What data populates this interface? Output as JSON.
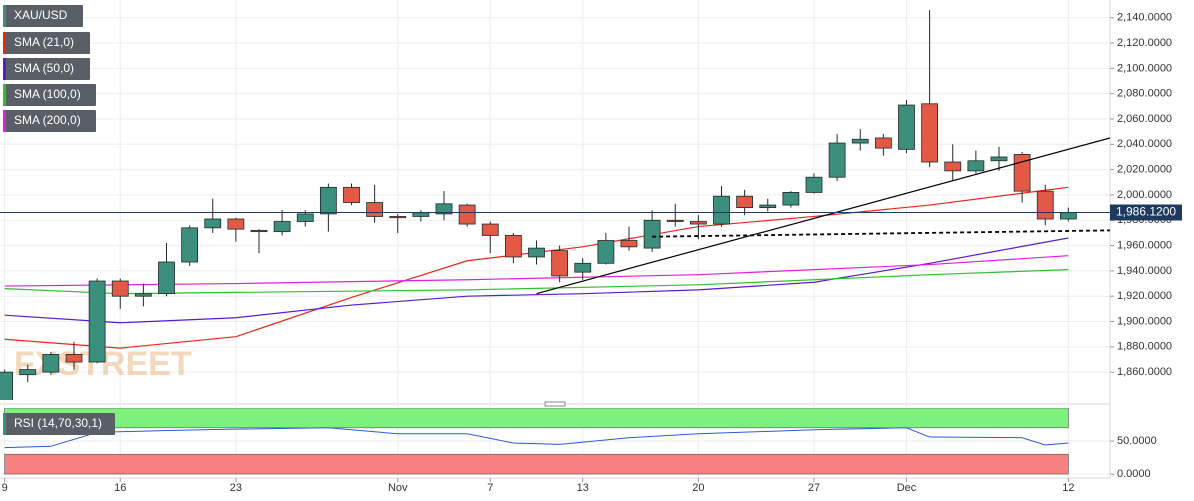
{
  "chart_data": [
    {
      "type": "candlestick",
      "name": "XAU/USD",
      "color_up": "#3b8f7c",
      "color_down": "#e25a45",
      "x": [
        0,
        1,
        2,
        3,
        4,
        5,
        6,
        7,
        8,
        9,
        10,
        11,
        12,
        13,
        14,
        15,
        16,
        17,
        18,
        19,
        20,
        21,
        22,
        23,
        24,
        25,
        26,
        27,
        28,
        29,
        30,
        31,
        32,
        33,
        34,
        35,
        36,
        37,
        38,
        39,
        40,
        41,
        42,
        43,
        44,
        45,
        46
      ],
      "open": [
        1832,
        1858,
        1860,
        1874,
        1868,
        1932,
        1920,
        1922,
        1947,
        1974,
        1981,
        1972,
        1971,
        1979,
        1985,
        2006,
        1994,
        1983,
        1983,
        1985,
        1992,
        1977,
        1968,
        1951,
        1956,
        1939,
        1946,
        1964,
        1958,
        1980,
        1979,
        1977,
        1999,
        1990,
        1992,
        2002,
        2014,
        2041,
        2045,
        2036,
        2072,
        2026,
        2019,
        2027,
        2032,
        2003,
        1981
      ],
      "high": [
        1862,
        1866,
        1876,
        1884,
        1934,
        1934,
        1930,
        1962,
        1976,
        1997,
        1982,
        1973,
        1988,
        1988,
        2009,
        2009,
        2008,
        1985,
        1988,
        2003,
        1993,
        1979,
        1970,
        1964,
        1960,
        1950,
        1970,
        1975,
        1988,
        1993,
        1984,
        2007,
        2004,
        1997,
        2003,
        2017,
        2048,
        2052,
        2048,
        2075,
        2146,
        2040,
        2035,
        2038,
        2034,
        2008,
        1990
      ],
      "low": [
        1830,
        1852,
        1858,
        1862,
        1867,
        1910,
        1912,
        1920,
        1944,
        1970,
        1963,
        1954,
        1968,
        1975,
        1971,
        1992,
        1978,
        1970,
        1979,
        1980,
        1975,
        1954,
        1946,
        1945,
        1931,
        1933,
        1945,
        1956,
        1955,
        1975,
        1965,
        1975,
        1984,
        1987,
        1990,
        2001,
        2011,
        2035,
        2031,
        2033,
        2022,
        2011,
        2017,
        2019,
        1994,
        1976,
        1979
      ],
      "close": [
        1860,
        1862,
        1874,
        1868,
        1932,
        1920,
        1922,
        1947,
        1974,
        1981,
        1973,
        1971,
        1979,
        1985,
        2006,
        1994,
        1983,
        1982,
        1986,
        1993,
        1977,
        1968,
        1951,
        1958,
        1936,
        1946,
        1964,
        1959,
        1980,
        1979,
        1977,
        1999,
        1990,
        1992,
        2002,
        2014,
        2041,
        2044,
        2037,
        2071,
        2026,
        2019,
        2027,
        2030,
        2003,
        1981,
        1986
      ],
      "overlays": [
        {
          "name": "SMA (21,0)",
          "color": "#e8271b",
          "x": [
            0,
            5,
            10,
            15,
            20,
            25,
            30,
            35,
            40,
            46
          ],
          "values": [
            1886,
            1879,
            1888,
            1919,
            1948,
            1959,
            1975,
            1983,
            1992,
            2006
          ]
        },
        {
          "name": "SMA (50,0)",
          "color": "#5a1ad0",
          "x": [
            0,
            5,
            10,
            15,
            20,
            25,
            30,
            35,
            40,
            46
          ],
          "values": [
            1905,
            1899,
            1903,
            1913,
            1920,
            1922,
            1925,
            1931,
            1946,
            1966
          ]
        },
        {
          "name": "SMA (100,0)",
          "color": "#2fbf2f",
          "x": [
            0,
            5,
            10,
            20,
            30,
            40,
            46
          ],
          "values": [
            1926,
            1922,
            1923,
            1925,
            1929,
            1937,
            1941
          ]
        },
        {
          "name": "SMA (200,0)",
          "color": "#e020e0",
          "x": [
            0,
            10,
            20,
            30,
            40,
            46
          ],
          "values": [
            1928,
            1930,
            1933,
            1937,
            1945,
            1952
          ]
        }
      ],
      "trendlines": [
        {
          "x": [
            23,
            47.8
          ],
          "values": [
            1922,
            2045
          ],
          "style": "solid"
        },
        {
          "x": [
            28,
            47.8
          ],
          "values": [
            1967,
            1972
          ],
          "style": "dashed"
        }
      ],
      "last_price": {
        "value": 1986.12,
        "label": "1,986.1200"
      },
      "watermark": "FXSTREET",
      "xlim": [
        -0.2,
        47.8
      ],
      "ylim": [
        1838,
        2154
      ],
      "xticks": [
        {
          "value": 0,
          "label": "9"
        },
        {
          "value": 5,
          "label": "16"
        },
        {
          "value": 10,
          "label": "23"
        },
        {
          "value": 17,
          "label": "Nov"
        },
        {
          "value": 21,
          "label": "7"
        },
        {
          "value": 25,
          "label": "13"
        },
        {
          "value": 30,
          "label": "20"
        },
        {
          "value": 35,
          "label": "27"
        },
        {
          "value": 39,
          "label": "Dec"
        },
        {
          "value": 46,
          "label": "12"
        }
      ],
      "yticks": [
        {
          "value": 1860,
          "label": "1,860.0000"
        },
        {
          "value": 1880,
          "label": "1,880.0000"
        },
        {
          "value": 1900,
          "label": "1,900.0000"
        },
        {
          "value": 1920,
          "label": "1,920.0000"
        },
        {
          "value": 1940,
          "label": "1,940.0000"
        },
        {
          "value": 1960,
          "label": "1,960.0000"
        },
        {
          "value": 1980,
          "label": "1,980.0000"
        },
        {
          "value": 2000,
          "label": "2,000.0000"
        },
        {
          "value": 2020,
          "label": "2,020.0000"
        },
        {
          "value": 2040,
          "label": "2,040.0000"
        },
        {
          "value": 2060,
          "label": "2,060.0000"
        },
        {
          "value": 2080,
          "label": "2,080.0000"
        },
        {
          "value": 2100,
          "label": "2,100.0000"
        },
        {
          "value": 2120,
          "label": "2,120.0000"
        },
        {
          "value": 2140,
          "label": "2,140.0000"
        }
      ],
      "grid": true
    },
    {
      "type": "line",
      "name": "RSI (14,70,30,1)",
      "color": "#2a5bd7",
      "x": [
        0,
        2,
        4,
        7,
        10,
        14,
        17,
        20,
        22,
        24,
        27,
        30,
        35,
        39,
        40,
        44,
        45,
        46
      ],
      "values": [
        40,
        42,
        63,
        66,
        68,
        70,
        61,
        61,
        47,
        45,
        55,
        61,
        67,
        70,
        56,
        55,
        44,
        47
      ],
      "bands": [
        {
          "range": [
            70,
            100
          ],
          "color": "#7ef07e"
        },
        {
          "range": [
            0,
            30
          ],
          "color": "#f78080"
        }
      ],
      "ylim": [
        -6,
        100
      ],
      "yticks": [
        {
          "value": 0,
          "label": "0.0000"
        },
        {
          "value": 50,
          "label": "50.0000"
        }
      ]
    }
  ]
}
